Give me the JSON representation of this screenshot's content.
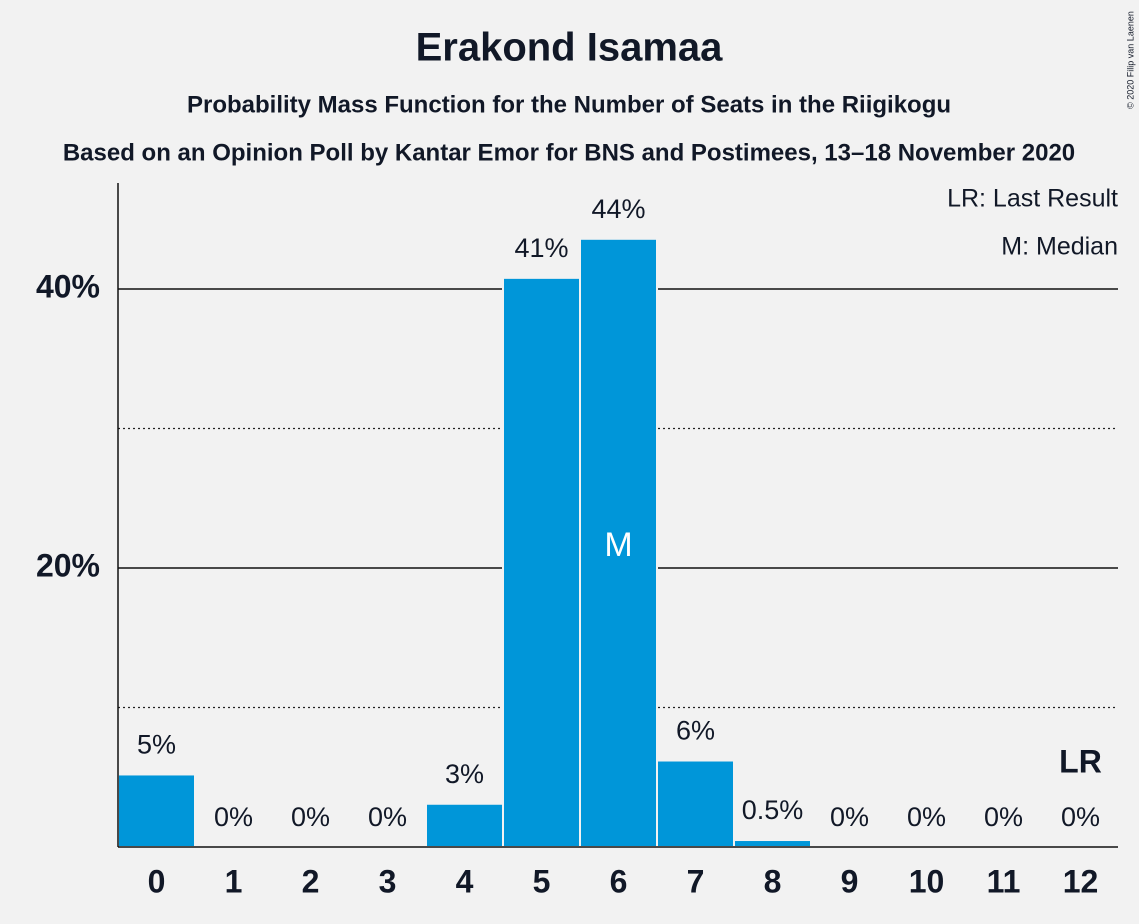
{
  "chart_data": {
    "type": "bar",
    "title": "Erakond Isamaa",
    "subtitle": "Probability Mass Function for the Number of Seats in the Riigikogu",
    "subtitle2": "Based on an Opinion Poll by Kantar Emor for BNS and Postimees, 13–18 November 2020",
    "copyright": "© 2020 Filip van Laenen",
    "legend": [
      "LR: Last Result",
      "M: Median"
    ],
    "categories": [
      "0",
      "1",
      "2",
      "3",
      "4",
      "5",
      "6",
      "7",
      "8",
      "9",
      "10",
      "11",
      "12"
    ],
    "values": [
      5.2,
      0,
      0,
      0,
      3.1,
      40.8,
      43.6,
      6.2,
      0.5,
      0,
      0,
      0,
      0
    ],
    "value_labels": [
      "5%",
      "0%",
      "0%",
      "0%",
      "3%",
      "41%",
      "44%",
      "6%",
      "0.5%",
      "0%",
      "0%",
      "0%",
      "0%"
    ],
    "color": "#0096d9",
    "ylim": [
      0,
      47.6
    ],
    "yticks": [
      {
        "value": 20,
        "label": "20%"
      },
      {
        "value": 40,
        "label": "40%"
      }
    ],
    "minor_yticks": [
      10,
      30
    ],
    "grid": true,
    "median": {
      "index": 6,
      "label": "M"
    },
    "last_result": {
      "index": 12,
      "label": "LR"
    }
  }
}
